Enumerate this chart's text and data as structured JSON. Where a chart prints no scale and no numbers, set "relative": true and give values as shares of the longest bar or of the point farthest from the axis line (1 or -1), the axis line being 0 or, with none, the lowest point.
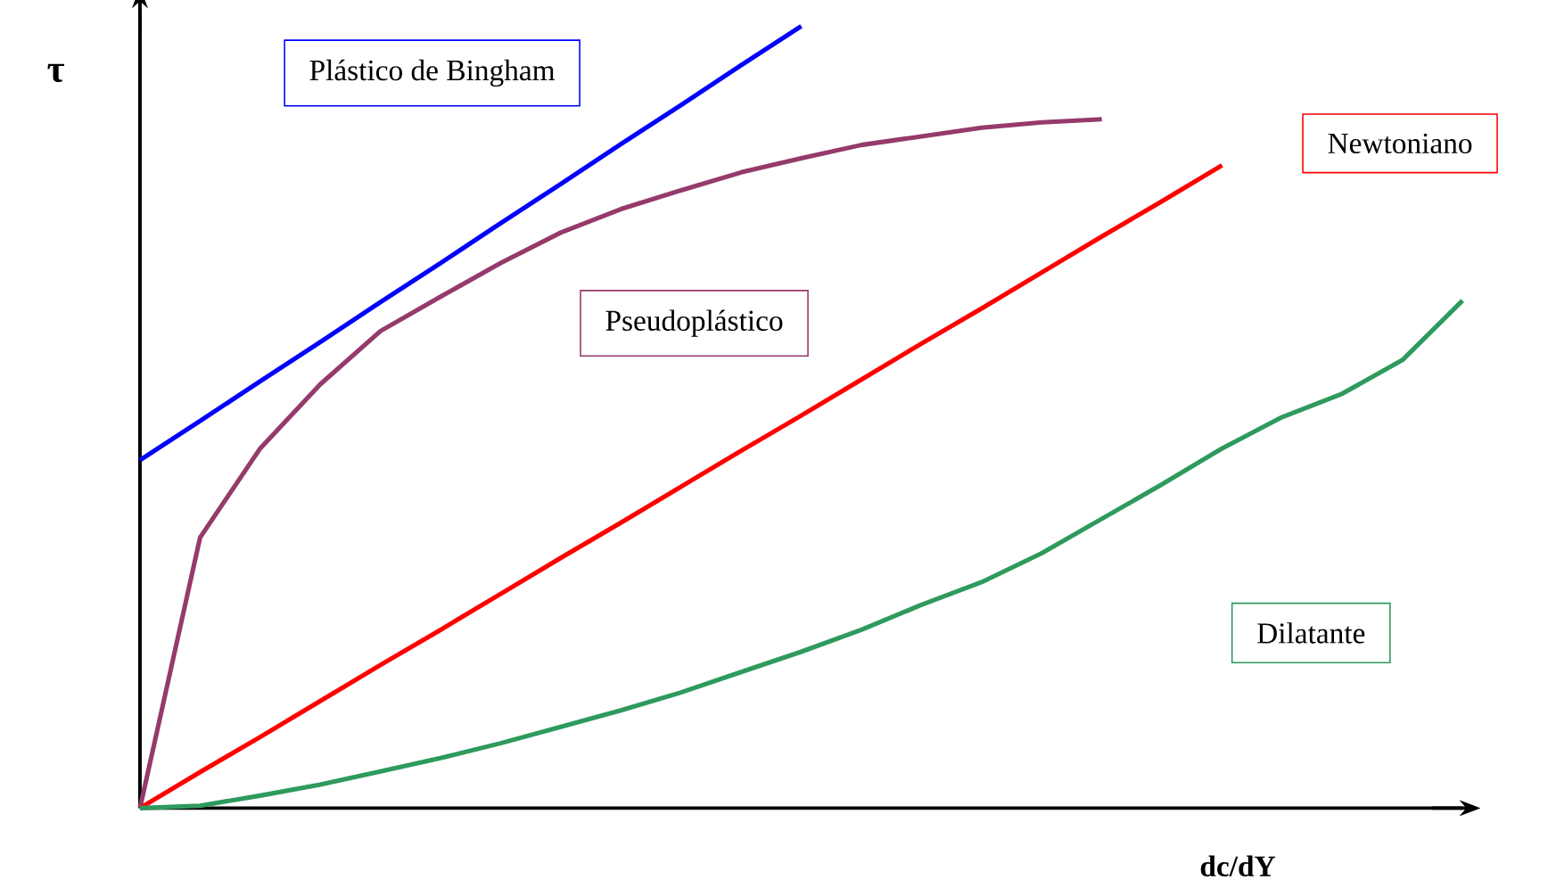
{
  "chart_data": {
    "type": "line",
    "relative": true,
    "xlabel": "dc/dY",
    "ylabel": "τ",
    "marker": "none",
    "line_style": "solid",
    "categories": [
      null,
      null,
      null,
      null,
      null,
      null,
      null,
      null,
      null,
      null,
      null,
      null,
      null,
      null,
      null,
      null,
      null,
      null,
      null,
      null,
      null,
      null,
      null
    ],
    "series": [
      {
        "name": "Plástico de Bingham",
        "color": "#0000ff",
        "values": [
          0.445,
          0.495,
          0.546,
          0.596,
          0.647,
          0.697,
          0.748,
          0.798,
          0.849,
          0.899,
          0.95,
          1.0,
          null,
          null,
          null,
          null,
          null,
          null,
          null,
          null,
          null,
          null,
          null
        ]
      },
      {
        "name": "Pseudoplástico",
        "color": "#953a6b",
        "values": [
          0,
          0.346,
          0.46,
          0.542,
          0.61,
          0.654,
          0.697,
          0.736,
          0.766,
          0.79,
          0.813,
          0.831,
          0.848,
          0.859,
          0.87,
          0.877,
          0.881,
          null,
          null,
          null,
          null,
          null,
          null
        ]
      },
      {
        "name": "Newtoniano",
        "color": "#ff0000",
        "values": [
          0,
          0.046,
          0.091,
          0.137,
          0.183,
          0.228,
          0.274,
          0.32,
          0.365,
          0.411,
          0.457,
          0.502,
          0.548,
          0.594,
          0.639,
          0.685,
          0.731,
          0.776,
          0.822,
          null,
          null,
          null,
          null
        ]
      },
      {
        "name": "Dilatante",
        "color": "#2e9a5e",
        "values": [
          0,
          0.003,
          0.016,
          0.03,
          0.047,
          0.064,
          0.083,
          0.104,
          0.125,
          0.148,
          0.174,
          0.2,
          0.228,
          0.26,
          0.289,
          0.326,
          0.37,
          0.414,
          0.46,
          0.5,
          0.53,
          0.573,
          0.649
        ]
      }
    ]
  }
}
